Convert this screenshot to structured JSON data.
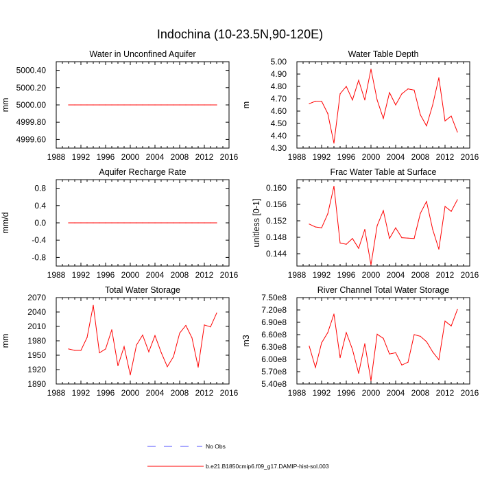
{
  "figure": {
    "title": "Indochina (10-23.5N,90-120E)"
  },
  "legend": {
    "entries": [
      {
        "label": "No Obs",
        "color": "#5050ff",
        "dashed": true
      },
      {
        "label": "b.e21.B1850cmip6.f09_g17.DAMIP-hist-sol.003",
        "color": "#ff0000",
        "dashed": false
      }
    ]
  },
  "chart_data": [
    {
      "type": "line",
      "title": "Water in Unconfined Aquifer",
      "ylabel": "mm",
      "xlim": [
        1988,
        2016
      ],
      "ylim": [
        4999.5,
        5000.5
      ],
      "xticks": [
        "1988",
        "1992",
        "1996",
        "2000",
        "2004",
        "2008",
        "2012",
        "2016"
      ],
      "yticks": [
        "4999.60",
        "4999.80",
        "5000.00",
        "5000.20",
        "5000.40"
      ],
      "series": [
        {
          "color": "#ff0000",
          "x": [
            1990,
            1991,
            1992,
            1993,
            1994,
            1995,
            1996,
            1997,
            1998,
            1999,
            2000,
            2001,
            2002,
            2003,
            2004,
            2005,
            2006,
            2007,
            2008,
            2009,
            2010,
            2011,
            2012,
            2013,
            2014
          ],
          "values": [
            5000,
            5000,
            5000,
            5000,
            5000,
            5000,
            5000,
            5000,
            5000,
            5000,
            5000,
            5000,
            5000,
            5000,
            5000,
            5000,
            5000,
            5000,
            5000,
            5000,
            5000,
            5000,
            5000,
            5000,
            5000
          ]
        }
      ]
    },
    {
      "type": "line",
      "title": "Water Table Depth",
      "ylabel": "m",
      "xlim": [
        1988,
        2016
      ],
      "ylim": [
        4.3,
        5.0
      ],
      "xticks": [
        "1988",
        "1992",
        "1996",
        "2000",
        "2004",
        "2008",
        "2012",
        "2016"
      ],
      "yticks": [
        "4.30",
        "4.40",
        "4.50",
        "4.60",
        "4.70",
        "4.80",
        "4.90",
        "5.00"
      ],
      "series": [
        {
          "color": "#ff0000",
          "x": [
            1990,
            1991,
            1992,
            1993,
            1994,
            1995,
            1996,
            1997,
            1998,
            1999,
            2000,
            2001,
            2002,
            2003,
            2004,
            2005,
            2006,
            2007,
            2008,
            2009,
            2010,
            2011,
            2012,
            2013,
            2014
          ],
          "values": [
            4.66,
            4.68,
            4.68,
            4.58,
            4.34,
            4.74,
            4.8,
            4.69,
            4.85,
            4.69,
            4.94,
            4.69,
            4.54,
            4.75,
            4.65,
            4.74,
            4.78,
            4.77,
            4.57,
            4.48,
            4.65,
            4.87,
            4.52,
            4.56,
            4.43
          ]
        }
      ]
    },
    {
      "type": "line",
      "title": "Aquifer Recharge Rate",
      "ylabel": "mm/d",
      "xlim": [
        1988,
        2016
      ],
      "ylim": [
        -1.0,
        1.0
      ],
      "xticks": [
        "1988",
        "1992",
        "1996",
        "2000",
        "2004",
        "2008",
        "2012",
        "2016"
      ],
      "yticks": [
        "-0.8",
        "-0.4",
        "0.0",
        "0.4",
        "0.8"
      ],
      "series": [
        {
          "color": "#ff0000",
          "x": [
            1990,
            1991,
            1992,
            1993,
            1994,
            1995,
            1996,
            1997,
            1998,
            1999,
            2000,
            2001,
            2002,
            2003,
            2004,
            2005,
            2006,
            2007,
            2008,
            2009,
            2010,
            2011,
            2012,
            2013,
            2014
          ],
          "values": [
            0,
            0,
            0,
            0,
            0,
            0,
            0,
            0,
            0,
            0,
            0,
            0,
            0,
            0,
            0,
            0,
            0,
            0,
            0,
            0,
            0,
            0,
            0,
            0,
            0
          ]
        }
      ]
    },
    {
      "type": "line",
      "title": "Frac Water Table at Surface",
      "ylabel": "unitless [0-1]",
      "xlim": [
        1988,
        2016
      ],
      "ylim": [
        0.141,
        0.162
      ],
      "xticks": [
        "1988",
        "1992",
        "1996",
        "2000",
        "2004",
        "2008",
        "2012",
        "2016"
      ],
      "yticks": [
        "0.144",
        "0.148",
        "0.152",
        "0.156",
        "0.160"
      ],
      "series": [
        {
          "color": "#ff0000",
          "x": [
            1990,
            1991,
            1992,
            1993,
            1994,
            1995,
            1996,
            1997,
            1998,
            1999,
            2000,
            2001,
            2002,
            2003,
            2004,
            2005,
            2006,
            2007,
            2008,
            2009,
            2010,
            2011,
            2012,
            2013,
            2014
          ],
          "values": [
            0.1512,
            0.1505,
            0.1503,
            0.1537,
            0.1604,
            0.1466,
            0.1463,
            0.1477,
            0.1453,
            0.1499,
            0.1413,
            0.1508,
            0.1545,
            0.1477,
            0.1503,
            0.1479,
            0.1478,
            0.1477,
            0.1538,
            0.1567,
            0.1499,
            0.1451,
            0.1555,
            0.1543,
            0.1571
          ]
        }
      ]
    },
    {
      "type": "line",
      "title": "Total Water Storage",
      "ylabel": "mm",
      "xlim": [
        1988,
        2016
      ],
      "ylim": [
        1890,
        2070
      ],
      "xticks": [
        "1988",
        "1992",
        "1996",
        "2000",
        "2004",
        "2008",
        "2012",
        "2016"
      ],
      "yticks": [
        "1890",
        "1920",
        "1950",
        "1980",
        "2010",
        "2040",
        "2070"
      ],
      "series": [
        {
          "color": "#ff0000",
          "x": [
            1990,
            1991,
            1992,
            1993,
            1994,
            1995,
            1996,
            1997,
            1998,
            1999,
            2000,
            2001,
            2002,
            2003,
            2004,
            2005,
            2006,
            2007,
            2008,
            2009,
            2010,
            2011,
            2012,
            2013,
            2014
          ],
          "values": [
            1963,
            1960,
            1960,
            1987,
            2054,
            1955,
            1963,
            2003,
            1928,
            1968,
            1909,
            1971,
            1992,
            1957,
            1991,
            1956,
            1926,
            1947,
            1996,
            2012,
            1986,
            1925,
            2013,
            2009,
            2038
          ]
        }
      ]
    },
    {
      "type": "line",
      "title": "River Channel Total Water Storage",
      "ylabel": "m3",
      "xlim": [
        1988,
        2016
      ],
      "ylim": [
        540000000,
        750000000
      ],
      "xticks": [
        "1988",
        "1992",
        "1996",
        "2000",
        "2004",
        "2008",
        "2012",
        "2016"
      ],
      "yticks": [
        "5.40e8",
        "5.70e8",
        "6.00e8",
        "6.30e8",
        "6.60e8",
        "6.90e8",
        "7.20e8",
        "7.50e8"
      ],
      "series": [
        {
          "color": "#ff0000",
          "x": [
            1990,
            1991,
            1992,
            1993,
            1994,
            1995,
            1996,
            1997,
            1998,
            1999,
            2000,
            2001,
            2002,
            2003,
            2004,
            2005,
            2006,
            2007,
            2008,
            2009,
            2010,
            2011,
            2012,
            2013,
            2014
          ],
          "values": [
            632000000,
            580000000,
            640000000,
            665000000,
            710000000,
            604000000,
            665000000,
            624000000,
            566000000,
            638000000,
            548000000,
            661000000,
            651000000,
            613000000,
            616000000,
            586000000,
            593000000,
            660000000,
            656000000,
            643000000,
            618000000,
            599000000,
            693000000,
            681000000,
            721000000
          ]
        }
      ]
    }
  ]
}
